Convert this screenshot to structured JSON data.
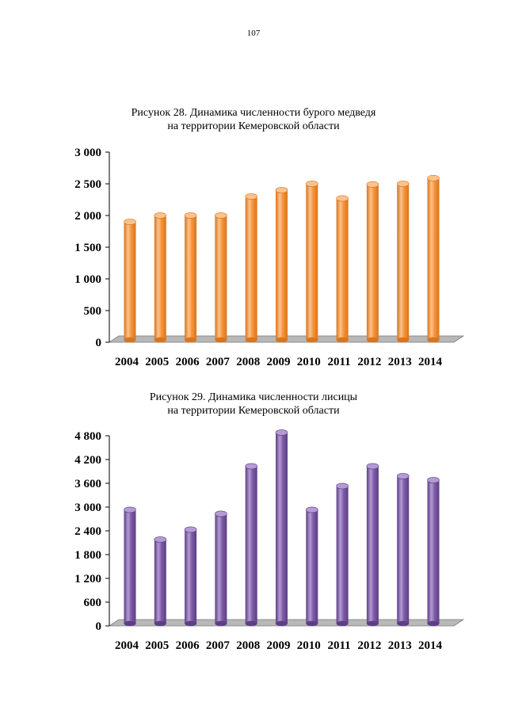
{
  "page": {
    "number": "107"
  },
  "chart_data": [
    {
      "type": "bar",
      "title_line1": "Рисунок 28. Динамика численности бурого медведя",
      "title_line2": "на территории Кемеровской области",
      "categories": [
        "2004",
        "2005",
        "2006",
        "2007",
        "2008",
        "2009",
        "2010",
        "2011",
        "2012",
        "2013",
        "2014"
      ],
      "values": [
        1850,
        1950,
        1950,
        1950,
        2250,
        2350,
        2450,
        2220,
        2440,
        2450,
        2540
      ],
      "yticks": [
        0,
        500,
        1000,
        1500,
        2000,
        2500,
        3000
      ],
      "ytick_labels": [
        "0",
        "500",
        "1 000",
        "1 500",
        "2 000",
        "2 500",
        "3 000"
      ],
      "ylim": [
        0,
        3000
      ],
      "color": "#f7943a",
      "color_light": "#fbc38c",
      "color_dark": "#d9751e"
    },
    {
      "type": "bar",
      "title_line1": "Рисунок 29. Динамика численности лисицы",
      "title_line2": "на территории Кемеровской области",
      "categories": [
        "2004",
        "2005",
        "2006",
        "2007",
        "2008",
        "2009",
        "2010",
        "2011",
        "2012",
        "2013",
        "2014"
      ],
      "values": [
        2850,
        2100,
        2350,
        2750,
        3950,
        4800,
        2850,
        3450,
        3950,
        3700,
        3600
      ],
      "yticks": [
        0,
        600,
        1200,
        1800,
        2400,
        3000,
        3600,
        4200,
        4800
      ],
      "ytick_labels": [
        "0",
        "600",
        "1 200",
        "1 800",
        "2 400",
        "3 000",
        "3 600",
        "4 200",
        "4 800"
      ],
      "ylim": [
        0,
        4800
      ],
      "color": "#7e5ca8",
      "color_light": "#b49bd3",
      "color_dark": "#5c3f85"
    }
  ]
}
